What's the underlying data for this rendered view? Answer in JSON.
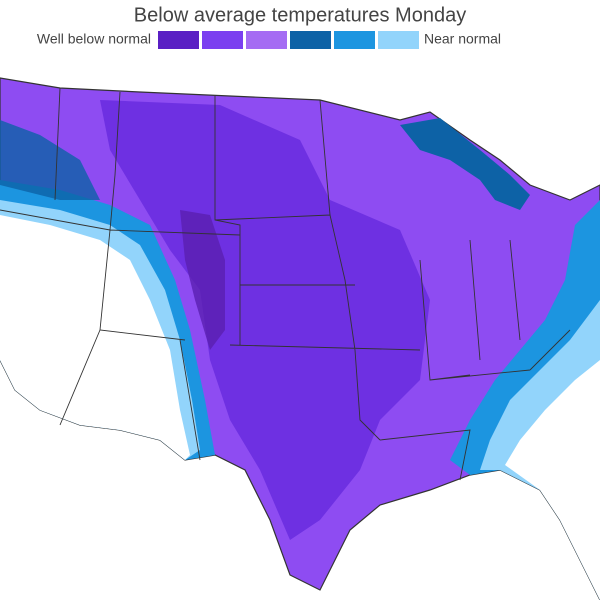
{
  "title": "Below average temperatures Monday",
  "legend": {
    "low_label": "Well below normal",
    "high_label": "Near normal",
    "colors": [
      "#5a1fc4",
      "#7b3ff0",
      "#a56cf3",
      "#0d62a6",
      "#1c95e0",
      "#92d4fb"
    ]
  }
}
